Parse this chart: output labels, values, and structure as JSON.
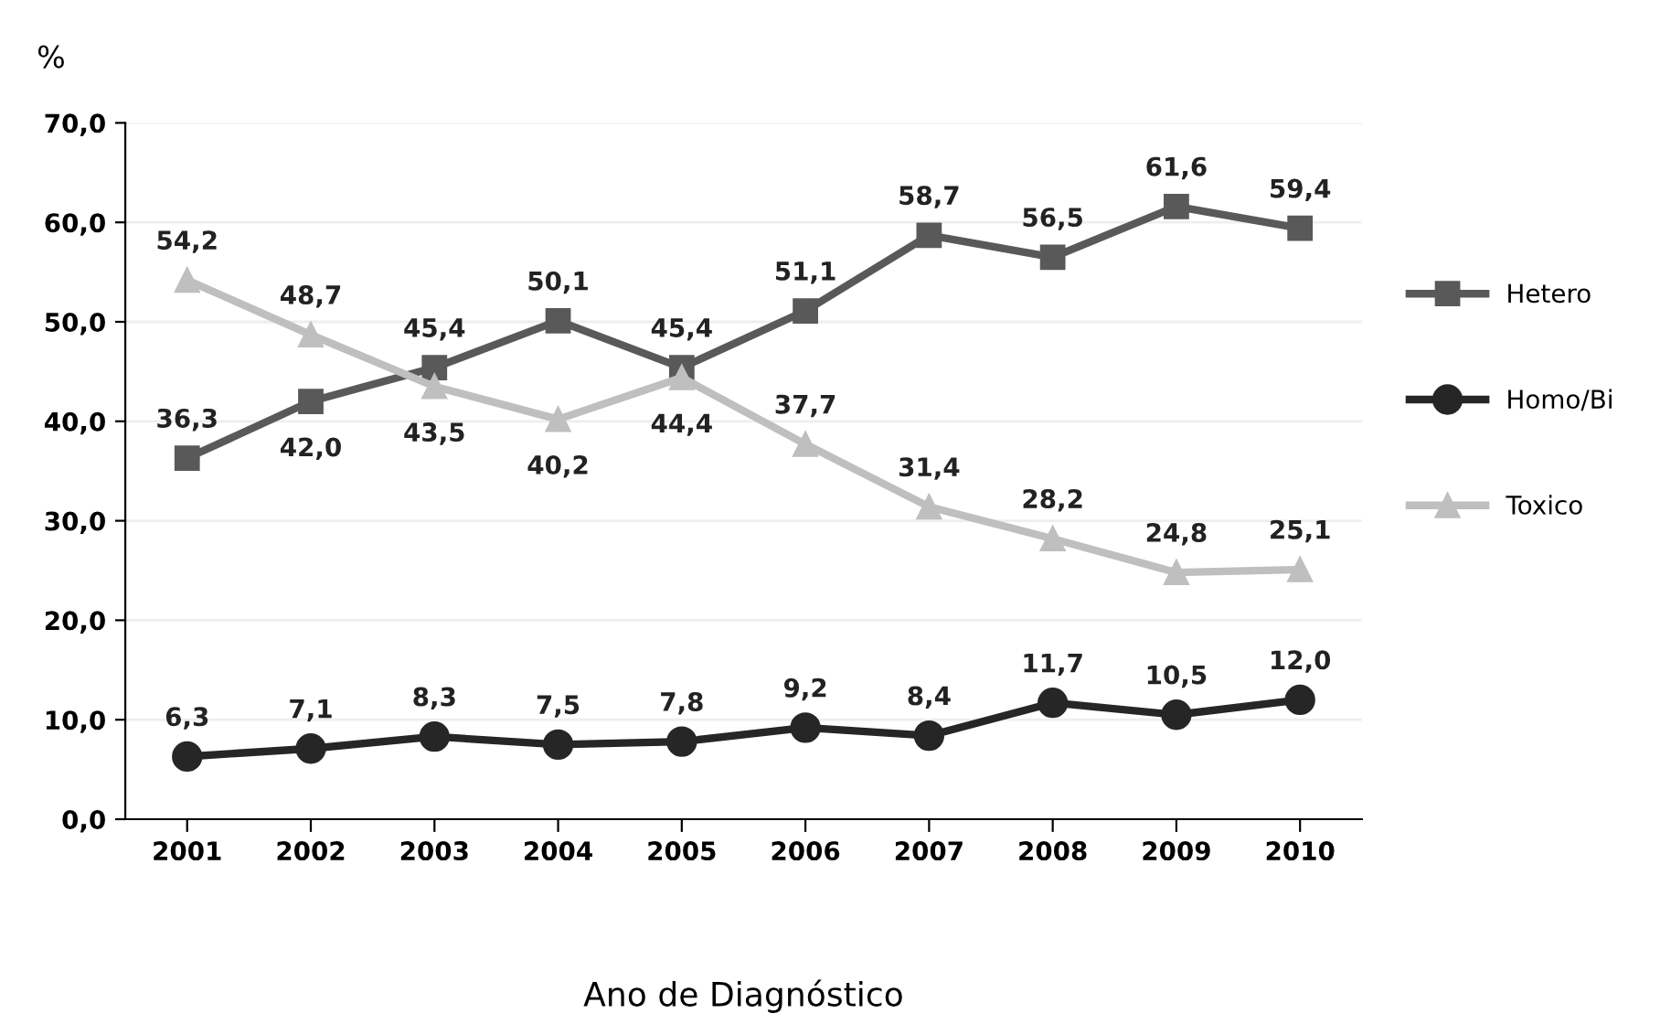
{
  "chart_data": {
    "type": "line",
    "ylabel": "%",
    "xlabel": "Ano de Diagnóstico",
    "categories": [
      "2001",
      "2002",
      "2003",
      "2004",
      "2005",
      "2006",
      "2007",
      "2008",
      "2009",
      "2010"
    ],
    "series": [
      {
        "name": "Hetero",
        "color": "#595959",
        "marker": "square",
        "values": [
          36.3,
          42.0,
          45.4,
          50.1,
          45.4,
          51.1,
          58.7,
          56.5,
          61.6,
          59.4
        ],
        "value_labels": [
          "36,3",
          "42,0",
          "45,4",
          "50,1",
          "45,4",
          "51,1",
          "58,7",
          "56,5",
          "61,6",
          "59,4"
        ]
      },
      {
        "name": "Homo/Bi",
        "color": "#262626",
        "marker": "circle",
        "values": [
          6.3,
          7.1,
          8.3,
          7.5,
          7.8,
          9.2,
          8.4,
          11.7,
          10.5,
          12.0
        ],
        "value_labels": [
          "6,3",
          "7,1",
          "8,3",
          "7,5",
          "7,8",
          "9,2",
          "8,4",
          "11,7",
          "10,5",
          "12,0"
        ]
      },
      {
        "name": "Toxico",
        "color": "#bfbfbf",
        "marker": "triangle",
        "values": [
          54.2,
          48.7,
          43.5,
          40.2,
          44.4,
          37.7,
          31.4,
          28.2,
          24.8,
          25.1
        ],
        "value_labels": [
          "54,2",
          "48,7",
          "43,5",
          "40,2",
          "44,4",
          "37,7",
          "31,4",
          "28,2",
          "24,8",
          "25,1"
        ]
      }
    ],
    "ylim": [
      0,
      70
    ],
    "yticks": [
      {
        "value": 0,
        "label": "0,0"
      },
      {
        "value": 10,
        "label": "10,0"
      },
      {
        "value": 20,
        "label": "20,0"
      },
      {
        "value": 30,
        "label": "30,0"
      },
      {
        "value": 40,
        "label": "40,0"
      },
      {
        "value": 50,
        "label": "50,0"
      },
      {
        "value": 60,
        "label": "60,0"
      },
      {
        "value": 70,
        "label": "70,0"
      }
    ],
    "grid": "y",
    "legend": "right",
    "line_style": "solid"
  }
}
